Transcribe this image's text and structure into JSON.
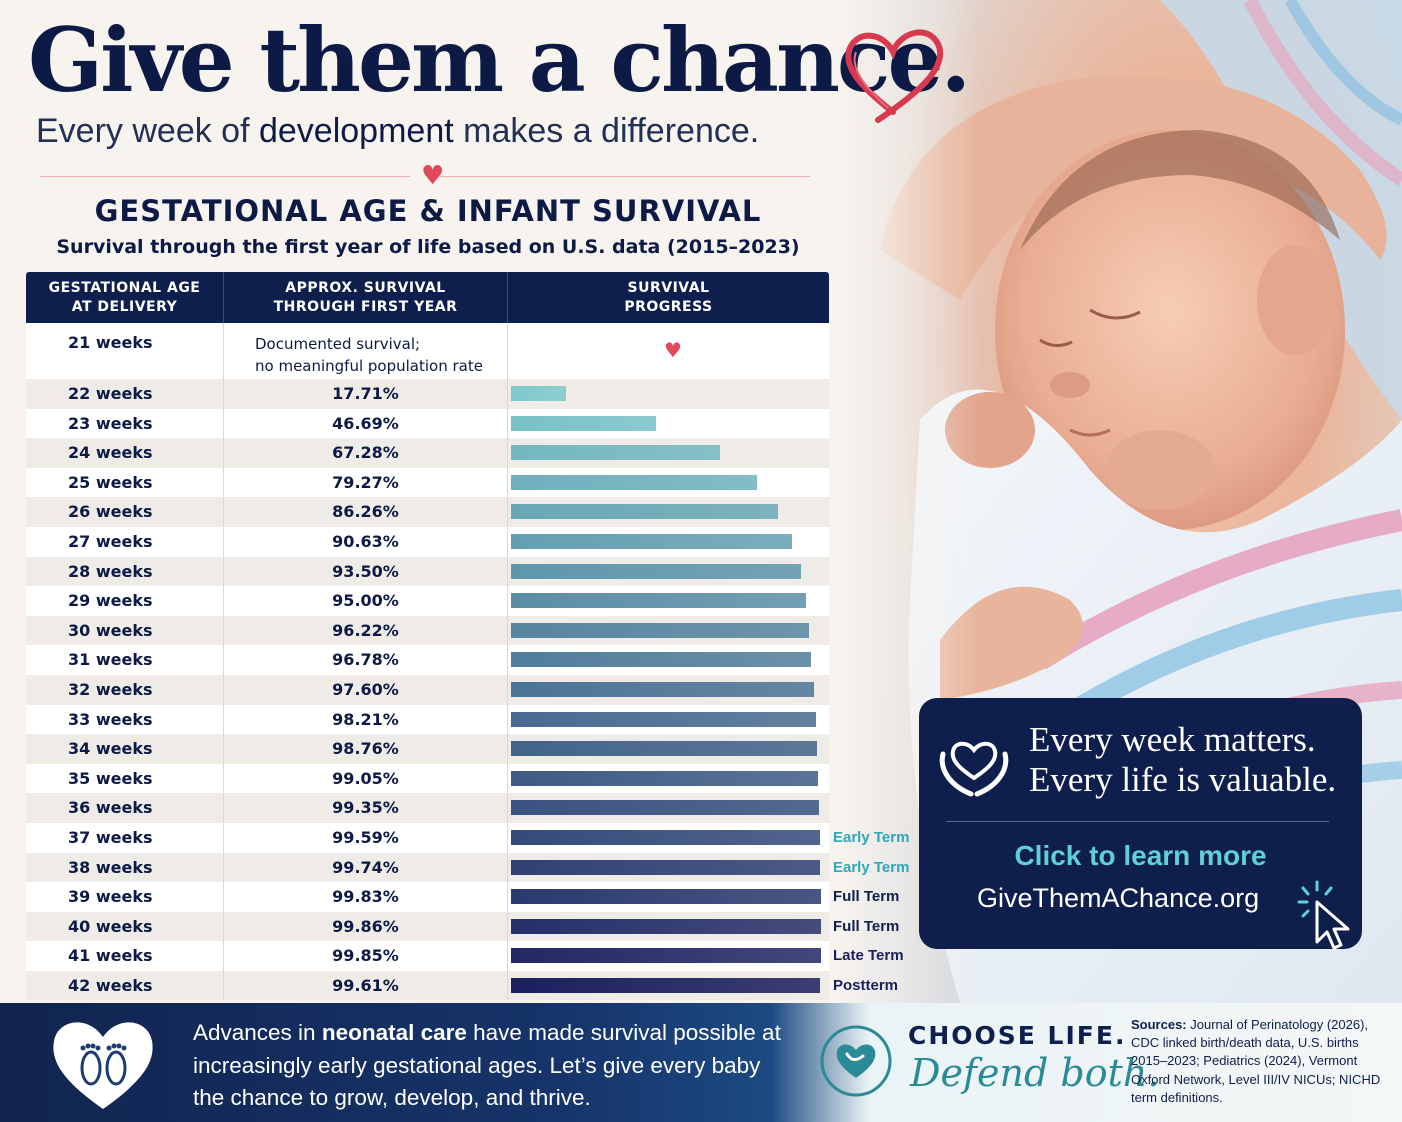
{
  "headline": "Give them a chance.",
  "subline_pre": "Every week of ",
  "subline_emph": "development",
  "subline_post": " makes a difference.",
  "colors": {
    "navy": "#0f1f4d",
    "teal": "#5fd0d3",
    "heart_red": "#e0485c",
    "bar_light": "#7cc9cc",
    "bar_dark": "#1c1f5e"
  },
  "chart_data": {
    "type": "table",
    "title": "GESTATIONAL AGE & INFANT SURVIVAL",
    "subtitle": "Survival through the first year of life based on U.S. data (2015–2023)",
    "columns": [
      "GESTATIONAL AGE\nAT DELIVERY",
      "APPROX. SURVIVAL\nTHROUGH FIRST YEAR",
      "SURVIVAL\nPROGRESS"
    ],
    "first_row": {
      "week": "21 weeks",
      "note": "Documented survival;\nno meaningful population rate"
    },
    "xlim": [
      0,
      100
    ],
    "rows": [
      {
        "week": "22 weeks",
        "survival": "17.71%",
        "value": 17.71,
        "term": ""
      },
      {
        "week": "23 weeks",
        "survival": "46.69%",
        "value": 46.69,
        "term": ""
      },
      {
        "week": "24 weeks",
        "survival": "67.28%",
        "value": 67.28,
        "term": ""
      },
      {
        "week": "25 weeks",
        "survival": "79.27%",
        "value": 79.27,
        "term": ""
      },
      {
        "week": "26 weeks",
        "survival": "86.26%",
        "value": 86.26,
        "term": ""
      },
      {
        "week": "27 weeks",
        "survival": "90.63%",
        "value": 90.63,
        "term": ""
      },
      {
        "week": "28 weeks",
        "survival": "93.50%",
        "value": 93.5,
        "term": ""
      },
      {
        "week": "29 weeks",
        "survival": "95.00%",
        "value": 95.0,
        "term": ""
      },
      {
        "week": "30 weeks",
        "survival": "96.22%",
        "value": 96.22,
        "term": ""
      },
      {
        "week": "31 weeks",
        "survival": "96.78%",
        "value": 96.78,
        "term": ""
      },
      {
        "week": "32 weeks",
        "survival": "97.60%",
        "value": 97.6,
        "term": ""
      },
      {
        "week": "33 weeks",
        "survival": "98.21%",
        "value": 98.21,
        "term": ""
      },
      {
        "week": "34 weeks",
        "survival": "98.76%",
        "value": 98.76,
        "term": ""
      },
      {
        "week": "35 weeks",
        "survival": "99.05%",
        "value": 99.05,
        "term": ""
      },
      {
        "week": "36 weeks",
        "survival": "99.35%",
        "value": 99.35,
        "term": ""
      },
      {
        "week": "37 weeks",
        "survival": "99.59%",
        "value": 99.59,
        "term": "Early Term"
      },
      {
        "week": "38 weeks",
        "survival": "99.74%",
        "value": 99.74,
        "term": "Early Term"
      },
      {
        "week": "39 weeks",
        "survival": "99.83%",
        "value": 99.83,
        "term": "Full Term"
      },
      {
        "week": "40 weeks",
        "survival": "99.86%",
        "value": 99.86,
        "term": "Full Term"
      },
      {
        "week": "41 weeks",
        "survival": "99.85%",
        "value": 99.85,
        "term": "Late Term"
      },
      {
        "week": "42 weeks",
        "survival": "99.61%",
        "value": 99.61,
        "term": "Postterm"
      }
    ]
  },
  "cta": {
    "line1": "Every week matters.",
    "line2": "Every life is valuable.",
    "link": "Click to learn more",
    "url": "GiveThemAChance.org"
  },
  "footer": {
    "text_pre": "Advances in ",
    "text_emph": "neonatal care",
    "text_post": " have made survival possible at increasingly early gestational ages. Let’s give every baby the chance to grow, develop, and thrive.",
    "choose_title": "CHOOSE LIFE.",
    "choose_sub": "Defend both.",
    "sources_label": "Sources:",
    "sources_text": " Journal of Perinatology (2026), CDC linked birth/death data, U.S. births 2015–2023; Pediatrics (2024), Vermont Oxford Network, Level III/IV NICUs; NICHD term definitions."
  }
}
